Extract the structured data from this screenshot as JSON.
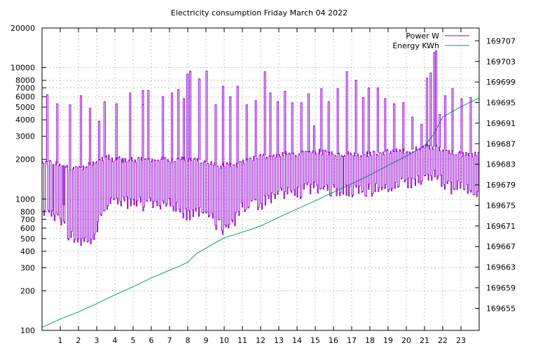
{
  "chart_data": {
    "type": "line",
    "title": "Electricity consumption Friday March 04 2022",
    "xlabel": "",
    "ylabel": "",
    "y2label": "",
    "x_range": [
      0,
      24
    ],
    "x_ticks": [
      1,
      2,
      3,
      4,
      5,
      6,
      7,
      8,
      9,
      10,
      11,
      12,
      13,
      14,
      15,
      16,
      17,
      18,
      19,
      20,
      21,
      22,
      23
    ],
    "y_scale": "log",
    "y_range": [
      100,
      20000
    ],
    "y_ticks": [
      {
        "value": 100,
        "label": "100"
      },
      {
        "value": 200,
        "label": "200"
      },
      {
        "value": 300,
        "label": "300"
      },
      {
        "value": 400,
        "label": "400"
      },
      {
        "value": 500,
        "label": "500"
      },
      {
        "value": 600,
        "label": "600"
      },
      {
        "value": 700,
        "label": "700"
      },
      {
        "value": 800,
        "label": "800"
      },
      {
        "value": 1000,
        "label": "1000"
      },
      {
        "value": 2000,
        "label": "2000"
      },
      {
        "value": 3000,
        "label": "3000"
      },
      {
        "value": 4000,
        "label": "4000"
      },
      {
        "value": 5000,
        "label": "5000"
      },
      {
        "value": 6000,
        "label": "6000"
      },
      {
        "value": 7000,
        "label": "7000"
      },
      {
        "value": 8000,
        "label": "8000"
      },
      {
        "value": 10000,
        "label": "10000"
      },
      {
        "value": 20000,
        "label": "20000"
      }
    ],
    "y2_scale": "linear",
    "y2_range": [
      169650.7,
      169709.5
    ],
    "y2_ticks": [
      169655,
      169659,
      169663,
      169667,
      169671,
      169675,
      169679,
      169683,
      169687,
      169691,
      169695,
      169699,
      169703,
      169707
    ],
    "grid": true,
    "legend_position": "top-right",
    "colors": {
      "power": "#9400d3",
      "energy": "#009e73",
      "grid": "#a0a0a0",
      "axis": "#000000"
    },
    "series": [
      {
        "name": "Power W",
        "axis": "y",
        "color": "#9400d3",
        "profile": {
          "x": [
            0,
            0.5,
            1,
            1.5,
            2,
            2.5,
            3,
            3.5,
            4,
            5,
            6,
            7,
            7.5,
            8,
            8.5,
            9,
            9.5,
            10,
            10.5,
            11,
            11.5,
            12,
            12.5,
            13,
            14,
            15,
            16,
            17,
            18,
            19,
            20,
            20.5,
            21,
            21.5,
            22,
            22.5,
            23,
            23.5,
            24
          ],
          "low": [
            700,
            750,
            650,
            500,
            480,
            470,
            580,
            850,
            950,
            900,
            900,
            900,
            850,
            700,
            800,
            750,
            650,
            550,
            650,
            850,
            900,
            900,
            1000,
            1050,
            1100,
            1200,
            1150,
            1150,
            1150,
            1150,
            1300,
            1300,
            1400,
            1450,
            1300,
            1200,
            1200,
            1100,
            1100
          ],
          "high": [
            1900,
            1900,
            1850,
            1700,
            1700,
            1800,
            1950,
            2100,
            2000,
            2000,
            2000,
            2000,
            2000,
            2000,
            2000,
            1900,
            1800,
            1800,
            1800,
            1900,
            2000,
            2200,
            2100,
            2200,
            2200,
            2300,
            2200,
            2200,
            2200,
            2300,
            2300,
            2400,
            2500,
            2500,
            2400,
            2300,
            2200,
            2200,
            2200
          ]
        },
        "spikes": [
          [
            0.25,
            6200
          ],
          [
            0.8,
            5300
          ],
          [
            1.15,
            900
          ],
          [
            1.5,
            5200
          ],
          [
            2.1,
            6100
          ],
          [
            2.6,
            4900
          ],
          [
            3.1,
            3900
          ],
          [
            3.4,
            5500
          ],
          [
            4.05,
            5300
          ],
          [
            4.4,
            1900
          ],
          [
            4.8,
            6400
          ],
          [
            5.5,
            5200
          ],
          [
            5.5,
            6700
          ],
          [
            5.8,
            6700
          ],
          [
            6.6,
            6000
          ],
          [
            7.1,
            6400
          ],
          [
            7.45,
            6800
          ],
          [
            7.75,
            5800
          ],
          [
            7.95,
            8900
          ],
          [
            8.1,
            9400
          ],
          [
            8.6,
            8200
          ],
          [
            9.0,
            9400
          ],
          [
            9.5,
            5200
          ],
          [
            9.9,
            7200
          ],
          [
            10.3,
            6000
          ],
          [
            10.7,
            7200
          ],
          [
            11.2,
            5200
          ],
          [
            11.7,
            5600
          ],
          [
            12.2,
            9300
          ],
          [
            12.5,
            6400
          ],
          [
            12.9,
            5500
          ],
          [
            13.3,
            6600
          ],
          [
            13.7,
            5400
          ],
          [
            14.2,
            5400
          ],
          [
            14.6,
            6300
          ],
          [
            14.9,
            3600
          ],
          [
            15.3,
            6900
          ],
          [
            15.7,
            5500
          ],
          [
            16.2,
            6900
          ],
          [
            16.7,
            9300
          ],
          [
            17.2,
            8000
          ],
          [
            17.6,
            5900
          ],
          [
            17.9,
            7000
          ],
          [
            18.4,
            7000
          ],
          [
            18.8,
            5800
          ],
          [
            19.3,
            5300
          ],
          [
            19.8,
            5400
          ],
          [
            20.3,
            4200
          ],
          [
            20.8,
            3700
          ],
          [
            21.1,
            8300
          ],
          [
            21.3,
            9100
          ],
          [
            21.5,
            13000
          ],
          [
            21.6,
            13400
          ],
          [
            21.8,
            4400
          ],
          [
            22.1,
            6100
          ],
          [
            22.5,
            6900
          ],
          [
            23.0,
            5800
          ],
          [
            23.5,
            5900
          ]
        ]
      },
      {
        "name": "Energy KWh",
        "axis": "y2",
        "color": "#009e73",
        "x": [
          0,
          1,
          2,
          3,
          4,
          5,
          6,
          7,
          7.5,
          8,
          8.5,
          9,
          9.5,
          10,
          11,
          12,
          13,
          14,
          15,
          16,
          17,
          18,
          19,
          20,
          21,
          21.5,
          22,
          23,
          24
        ],
        "values": [
          169651.3,
          169652.9,
          169654.3,
          169655.9,
          169657.6,
          169659.2,
          169660.9,
          169662.4,
          169663.1,
          169664.0,
          169665.7,
          169666.7,
          169667.7,
          169668.7,
          169669.8,
          169671.0,
          169672.7,
          169674.3,
          169675.9,
          169677.6,
          169679.2,
          169680.9,
          169682.8,
          169684.6,
          169686.6,
          169688.8,
          169692.2,
          169694.2,
          169695.9
        ]
      }
    ]
  }
}
